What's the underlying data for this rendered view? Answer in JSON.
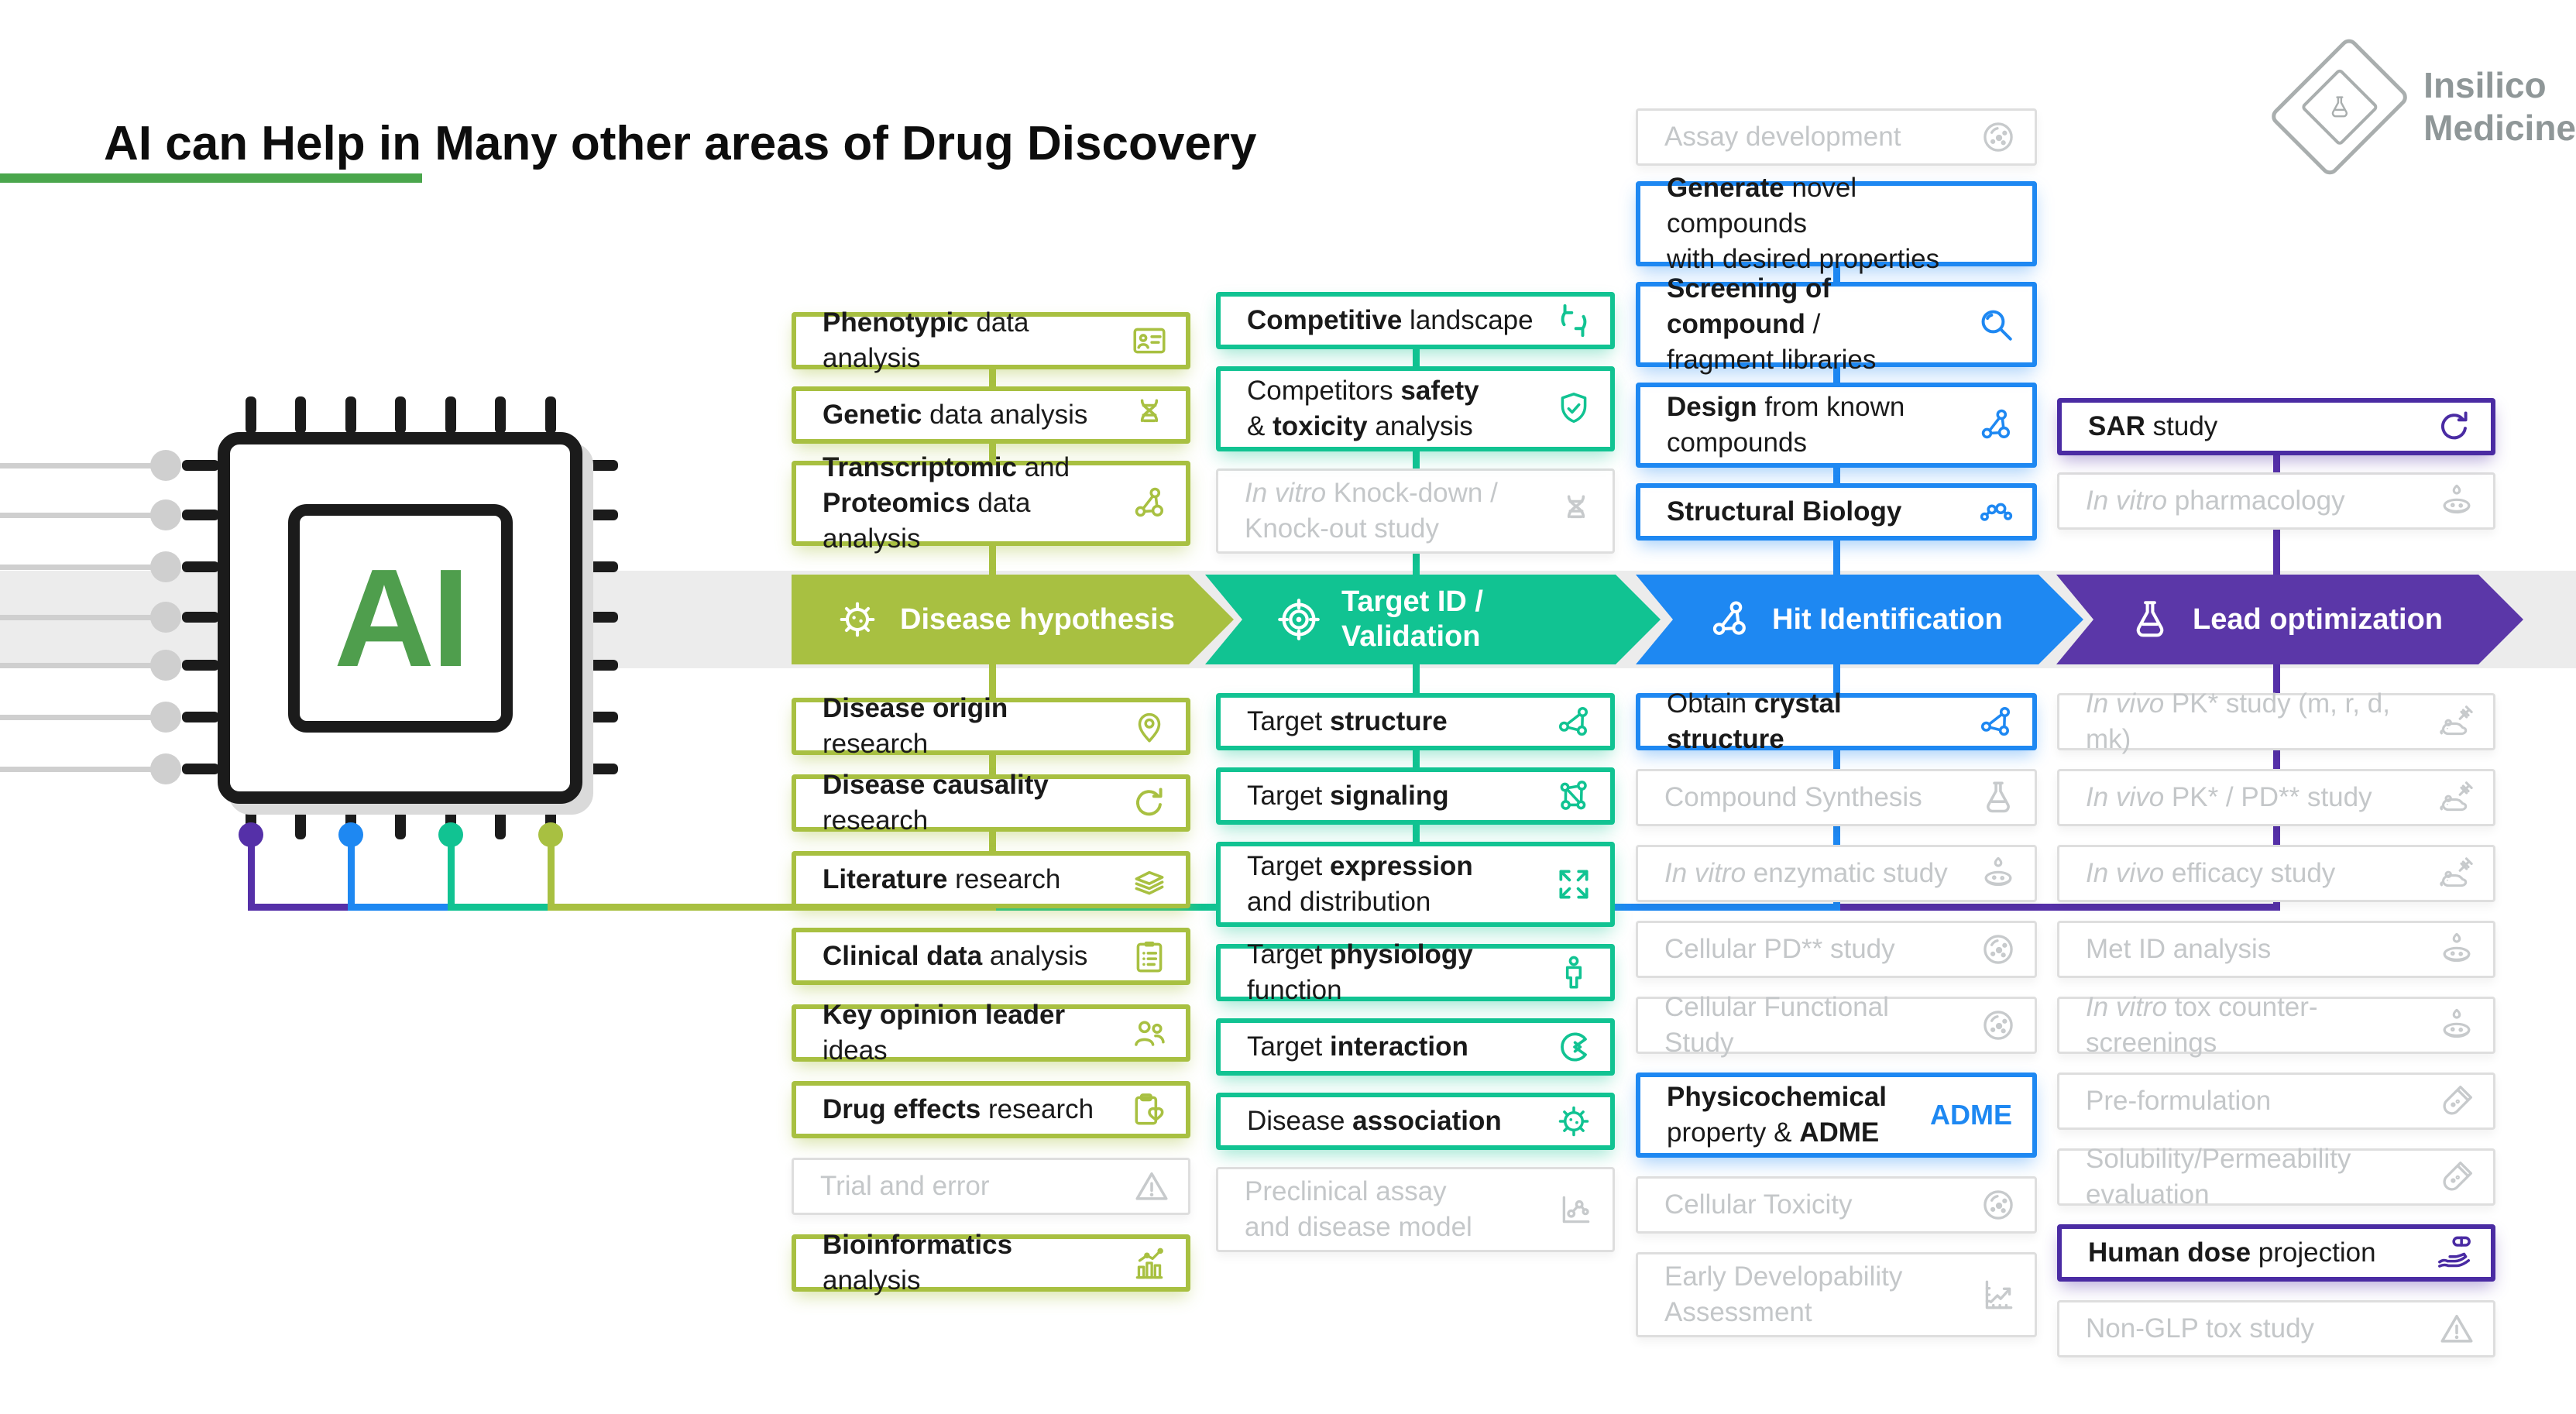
{
  "title": "AI can Help in Many other areas of Drug Discovery",
  "logo": {
    "line1": "Insilico",
    "line2": "Medicine"
  },
  "palette": {
    "green": "#a8c041",
    "teal": "#11c392",
    "blue": "#1e88f2",
    "purple_arrow": "#5b37a8",
    "purple_box": "#4a2ba3",
    "connector_purple": "#5530a8",
    "band_gray": "#ececec",
    "gray_text": "#c4c7c9",
    "gray_border": "#dedede",
    "ai_green": "#4f9e4d",
    "underline_green": "#4aa64c",
    "logo_gray": "#8f9798"
  },
  "stages": [
    {
      "id": "disease-hypothesis",
      "label": "Disease hypothesis",
      "icon": "virus"
    },
    {
      "id": "target-id-validation",
      "label": "Target ID /\nValidation",
      "icon": "target"
    },
    {
      "id": "hit-identification",
      "label": "Hit Identification",
      "icon": "molecule"
    },
    {
      "id": "lead-optimization",
      "label": "Lead optimization",
      "icon": "flask"
    }
  ],
  "columns": [
    {
      "stage": "disease-hypothesis",
      "above": [
        {
          "name": "phenotypic-data-analysis",
          "icon": "id-badge",
          "segs": [
            {
              "t": "Phenotypic",
              "b": true
            },
            {
              "t": " data analysis"
            }
          ]
        },
        {
          "name": "genetic-data-analysis",
          "icon": "dna",
          "segs": [
            {
              "t": "Genetic",
              "b": true
            },
            {
              "t": " data analysis"
            }
          ]
        },
        {
          "name": "transcriptomic-proteomics-data-analysis",
          "icon": "molecule",
          "segs": [
            {
              "t": "Transcriptomic",
              "b": true
            },
            {
              "t": " and"
            },
            {
              "t": "Proteomics",
              "b": true,
              "nl": true
            },
            {
              "t": " data analysis"
            }
          ]
        }
      ],
      "below": [
        {
          "name": "disease-origin-research",
          "icon": "pin",
          "segs": [
            {
              "t": "Disease origin",
              "b": true
            },
            {
              "t": " research"
            }
          ]
        },
        {
          "name": "disease-causality-research",
          "icon": "cycle",
          "segs": [
            {
              "t": "Disease causality",
              "b": true
            },
            {
              "t": " research"
            }
          ]
        },
        {
          "name": "literature-research",
          "icon": "books",
          "segs": [
            {
              "t": "Literature",
              "b": true
            },
            {
              "t": " research"
            }
          ]
        },
        {
          "name": "clinical-data-analysis",
          "icon": "clipboard",
          "segs": [
            {
              "t": "Clinical data",
              "b": true
            },
            {
              "t": " analysis"
            }
          ]
        },
        {
          "name": "key-opinion-leader-ideas",
          "icon": "people",
          "segs": [
            {
              "t": "Key opinion leader",
              "b": true
            },
            {
              "t": " ideas"
            }
          ]
        },
        {
          "name": "drug-effects-research",
          "icon": "clipboard-heart",
          "segs": [
            {
              "t": "Drug effects",
              "b": true
            },
            {
              "t": " research"
            }
          ]
        },
        {
          "name": "trial-and-error",
          "icon": "warning",
          "inactive": true,
          "segs": [
            {
              "t": "Trial and error"
            }
          ]
        },
        {
          "name": "bioinformatics-analysis",
          "icon": "bar-chart",
          "segs": [
            {
              "t": "Bioinformatics",
              "b": true
            },
            {
              "t": " analysis"
            }
          ]
        }
      ]
    },
    {
      "stage": "target-id-validation",
      "above": [
        {
          "name": "competitive-landscape",
          "icon": "refresh",
          "segs": [
            {
              "t": "Competitive",
              "b": true
            },
            {
              "t": " landscape"
            }
          ]
        },
        {
          "name": "competitors-safety-toxicity-analysis",
          "icon": "shield-check",
          "segs": [
            {
              "t": "Competitors "
            },
            {
              "t": "safety",
              "b": true
            },
            {
              "t": "& ",
              "nl": true
            },
            {
              "t": "toxicity",
              "b": true
            },
            {
              "t": " analysis"
            }
          ]
        },
        {
          "name": "in-vitro-knockdown-knockout-study",
          "icon": "dna",
          "inactive": true,
          "segs": [
            {
              "t": "In vitro",
              "i": true
            },
            {
              "t": " Knock-down /"
            },
            {
              "t": "Knock-out study",
              "nl": true
            }
          ]
        }
      ],
      "below": [
        {
          "name": "target-structure",
          "icon": "molecule-tri",
          "segs": [
            {
              "t": "Target "
            },
            {
              "t": "structure",
              "b": true
            }
          ]
        },
        {
          "name": "target-signaling",
          "icon": "network",
          "segs": [
            {
              "t": "Target "
            },
            {
              "t": "signaling",
              "b": true
            }
          ]
        },
        {
          "name": "target-expression-distribution",
          "icon": "expand",
          "segs": [
            {
              "t": "Target "
            },
            {
              "t": "expression",
              "b": true
            },
            {
              "t": "and distribution",
              "nl": true
            }
          ]
        },
        {
          "name": "target-physiology-function",
          "icon": "person",
          "segs": [
            {
              "t": "Target "
            },
            {
              "t": "physiology",
              "b": true
            },
            {
              "t": " function"
            }
          ]
        },
        {
          "name": "target-interaction",
          "icon": "pacman",
          "segs": [
            {
              "t": "Target "
            },
            {
              "t": "interaction",
              "b": true
            }
          ]
        },
        {
          "name": "disease-association",
          "icon": "virus",
          "segs": [
            {
              "t": "Disease "
            },
            {
              "t": "association",
              "b": true
            }
          ]
        },
        {
          "name": "preclinical-assay-disease-model",
          "icon": "scatter",
          "inactive": true,
          "segs": [
            {
              "t": "Preclinical assay"
            },
            {
              "t": "and disease model",
              "nl": true
            }
          ]
        }
      ]
    },
    {
      "stage": "hit-identification",
      "above": [
        {
          "name": "assay-development",
          "icon": "cell",
          "inactive": true,
          "segs": [
            {
              "t": "Assay development"
            }
          ]
        },
        {
          "name": "generate-novel-compounds",
          "icon": null,
          "segs": [
            {
              "t": "Generate",
              "b": true
            },
            {
              "t": " novel compounds"
            },
            {
              "t": "with desired properties",
              "nl": true
            }
          ]
        },
        {
          "name": "screening-compound-fragment-libraries",
          "icon": "magnifier",
          "segs": [
            {
              "t": "Screening of compound",
              "b": true
            },
            {
              "t": " /"
            },
            {
              "t": "fragment libraries",
              "nl": true
            }
          ]
        },
        {
          "name": "design-from-known-compounds",
          "icon": "molecule",
          "segs": [
            {
              "t": "Design",
              "b": true
            },
            {
              "t": " from known"
            },
            {
              "t": "compounds",
              "nl": true
            }
          ]
        },
        {
          "name": "structural-biology",
          "icon": "molecule-chain",
          "segs": [
            {
              "t": "Structural Biology",
              "b": true
            }
          ]
        }
      ],
      "below": [
        {
          "name": "obtain-crystal-structure",
          "icon": "molecule-tri",
          "segs": [
            {
              "t": "Obtain "
            },
            {
              "t": "crystal structure",
              "b": true
            }
          ]
        },
        {
          "name": "compound-synthesis",
          "icon": "flask",
          "inactive": true,
          "segs": [
            {
              "t": "Compound Synthesis"
            }
          ]
        },
        {
          "name": "in-vitro-enzymatic-study",
          "icon": "petri",
          "inactive": true,
          "segs": [
            {
              "t": "In vitro",
              "i": true
            },
            {
              "t": " enzymatic study"
            }
          ]
        },
        {
          "name": "cellular-pd-study",
          "icon": "cell",
          "inactive": true,
          "segs": [
            {
              "t": "Cellular PD** study"
            }
          ]
        },
        {
          "name": "cellular-functional-study",
          "icon": "cell",
          "inactive": true,
          "segs": [
            {
              "t": "Cellular Functional Study"
            }
          ]
        },
        {
          "name": "physicochemical-property-adme",
          "icon": "adme",
          "badge": "ADME",
          "segs": [
            {
              "t": "Physicochemical",
              "b": true
            },
            {
              "t": "property & ",
              "nl": true
            },
            {
              "t": "ADME",
              "b": true
            }
          ]
        },
        {
          "name": "cellular-toxicity",
          "icon": "cell",
          "inactive": true,
          "segs": [
            {
              "t": "Cellular Toxicity"
            }
          ]
        },
        {
          "name": "early-developability-assessment",
          "icon": "chart-up",
          "inactive": true,
          "segs": [
            {
              "t": "Early Developability"
            },
            {
              "t": "Assessment",
              "nl": true
            }
          ]
        }
      ]
    },
    {
      "stage": "lead-optimization",
      "above": [
        {
          "name": "sar-study",
          "icon": "cycle",
          "segs": [
            {
              "t": "SAR",
              "b": true
            },
            {
              "t": " study"
            }
          ]
        },
        {
          "name": "in-vitro-pharmacology",
          "icon": "petri",
          "inactive": true,
          "segs": [
            {
              "t": "In vitro",
              "i": true
            },
            {
              "t": " pharmacology"
            }
          ]
        }
      ],
      "below": [
        {
          "name": "in-vivo-pk-study-m-r-d-mk",
          "icon": "mouse",
          "inactive": true,
          "segs": [
            {
              "t": "In vivo",
              "i": true
            },
            {
              "t": " PK* study (m, r, d, mk)"
            }
          ]
        },
        {
          "name": "in-vivo-pk-pd-study",
          "icon": "mouse",
          "inactive": true,
          "segs": [
            {
              "t": "In vivo",
              "i": true
            },
            {
              "t": " PK* / PD** study"
            }
          ]
        },
        {
          "name": "in-vivo-efficacy-study",
          "icon": "mouse",
          "inactive": true,
          "segs": [
            {
              "t": "In vivo",
              "i": true
            },
            {
              "t": " efficacy study"
            }
          ]
        },
        {
          "name": "met-id-analysis",
          "icon": "petri",
          "inactive": true,
          "segs": [
            {
              "t": "Met ID analysis"
            }
          ]
        },
        {
          "name": "in-vitro-tox-counter-screenings",
          "icon": "petri",
          "inactive": true,
          "segs": [
            {
              "t": "In vitro",
              "i": true
            },
            {
              "t": " tox counter-screenings"
            }
          ]
        },
        {
          "name": "pre-formulation",
          "icon": "test-tube",
          "inactive": true,
          "segs": [
            {
              "t": "Pre-formulation"
            }
          ]
        },
        {
          "name": "solubility-permeability-evaluation",
          "icon": "test-tube",
          "inactive": true,
          "segs": [
            {
              "t": "Solubility/Permeability evaluation"
            }
          ]
        },
        {
          "name": "human-dose-projection",
          "icon": "hand-pill",
          "segs": [
            {
              "t": "Human dose",
              "b": true
            },
            {
              "t": " projection"
            }
          ]
        },
        {
          "name": "non-glp-tox-study",
          "icon": "warning",
          "inactive": true,
          "segs": [
            {
              "t": "Non-GLP tox study"
            }
          ]
        }
      ]
    }
  ]
}
